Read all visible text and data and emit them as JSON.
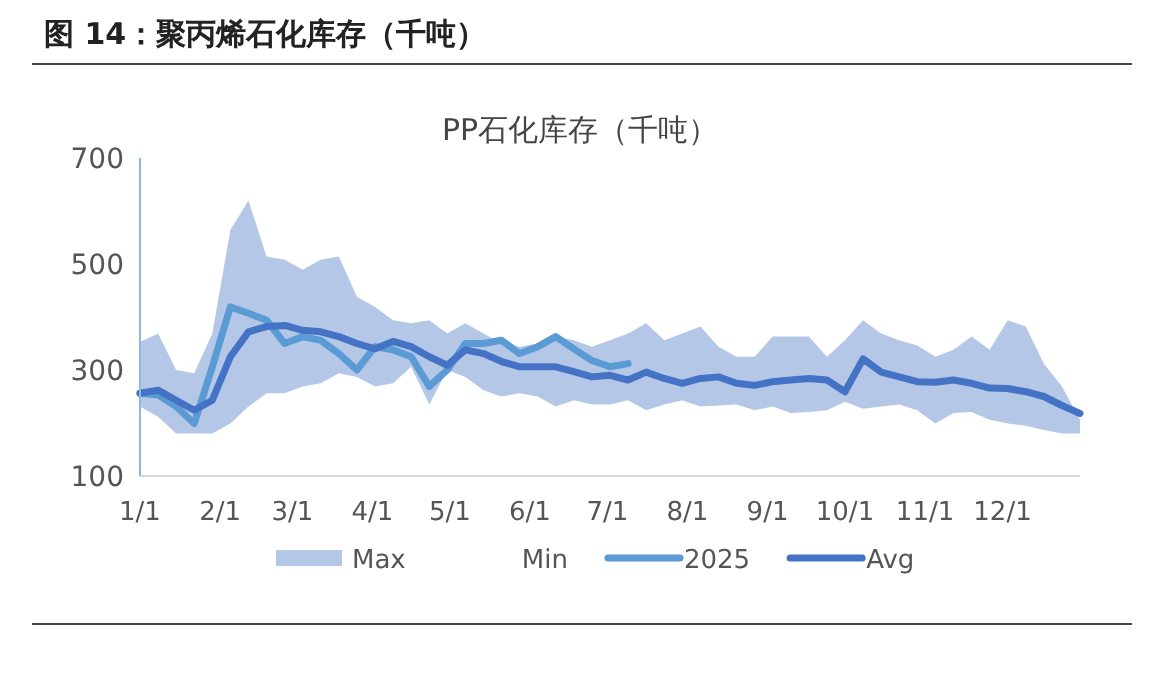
{
  "chart_data": {
    "type": "line",
    "title": "图 14：聚丙烯石化库存（千吨）",
    "subtitle": "PP石化库存（千吨）",
    "x": [
      "--01-01",
      "--01-08",
      "--01-15",
      "--01-22",
      "--01-29",
      "--02-05",
      "--02-12",
      "--02-19",
      "--02-26",
      "--03-05",
      "--03-12",
      "--03-19",
      "--03-26",
      "--04-02",
      "--04-09",
      "--04-16",
      "--04-23",
      "--04-30",
      "--05-07",
      "--05-14",
      "--05-21",
      "--05-28",
      "--06-04",
      "--06-11",
      "--06-18",
      "--06-25",
      "--07-02",
      "--07-09",
      "--07-16",
      "--07-23",
      "--07-30",
      "--08-06",
      "--08-13",
      "--08-20",
      "--08-27",
      "--09-03",
      "--09-10",
      "--09-17",
      "--09-24",
      "--10-01",
      "--10-08",
      "--10-15",
      "--10-22",
      "--10-29",
      "--11-05",
      "--11-12",
      "--11-19",
      "--11-26",
      "--12-03",
      "--12-10",
      "--12-17",
      "--12-24",
      "--12-31"
    ],
    "series": [
      {
        "name": "Max",
        "type": "area",
        "color": "#b4c7e7",
        "values": [
          353,
          369,
          300,
          294,
          369,
          564,
          620,
          514,
          508,
          489,
          508,
          514,
          438,
          419,
          394,
          388,
          394,
          369,
          388,
          369,
          350,
          344,
          350,
          363,
          356,
          344,
          356,
          369,
          388,
          356,
          369,
          382,
          344,
          325,
          325,
          363,
          363,
          363,
          325,
          356,
          394,
          369,
          356,
          346,
          325,
          338,
          363,
          338,
          394,
          382,
          312,
          269,
          206
        ]
      },
      {
        "name": "Min",
        "type": "area",
        "color": "#ffffff",
        "values": [
          231,
          212,
          180,
          180,
          180,
          199,
          231,
          256,
          256,
          269,
          275,
          294,
          287,
          269,
          275,
          306,
          235,
          300,
          287,
          262,
          250,
          256,
          250,
          231,
          243,
          235,
          235,
          243,
          224,
          235,
          243,
          231,
          233,
          235,
          224,
          231,
          219,
          221,
          224,
          240,
          227,
          231,
          235,
          224,
          199,
          219,
          221,
          206,
          199,
          195,
          187,
          180,
          180
        ]
      },
      {
        "name": "2025",
        "color": "#5b9bd5",
        "x": [
          "--01-01",
          "--01-08",
          "--01-15",
          "--01-22",
          "--01-29",
          "--02-05",
          "--02-12",
          "--02-19",
          "--02-26",
          "--03-05",
          "--03-12",
          "--03-19",
          "--03-26",
          "--04-02",
          "--04-09",
          "--04-16",
          "--04-23",
          "--04-30",
          "--05-07",
          "--05-14",
          "--05-21",
          "--05-28",
          "--06-04",
          "--06-11",
          "--06-18",
          "--06-25",
          "--07-02",
          "--07-09"
        ],
        "values": [
          256,
          253,
          231,
          199,
          306,
          419,
          407,
          394,
          350,
          363,
          356,
          331,
          300,
          344,
          338,
          325,
          269,
          300,
          350,
          350,
          356,
          331,
          344,
          363,
          340,
          318,
          306,
          312
        ]
      },
      {
        "name": "Avg",
        "color": "#4472c4",
        "values": [
          256,
          262,
          243,
          224,
          243,
          325,
          372,
          382,
          384,
          375,
          372,
          363,
          350,
          340,
          354,
          344,
          325,
          309,
          338,
          331,
          316,
          306,
          306,
          306,
          297,
          287,
          290,
          281,
          296,
          284,
          275,
          284,
          287,
          275,
          271,
          278,
          281,
          284,
          281,
          259,
          321,
          296,
          287,
          278,
          277,
          281,
          275,
          266,
          265,
          259,
          250,
          233,
          218
        ]
      }
    ],
    "xlim": [
      "--01-01",
      "--12-31"
    ],
    "xticks": [
      {
        "value": "--01-01",
        "label": "1/1"
      },
      {
        "value": "--02-01",
        "label": "2/1"
      },
      {
        "value": "--03-01",
        "label": "3/1"
      },
      {
        "value": "--04-01",
        "label": "4/1"
      },
      {
        "value": "--05-01",
        "label": "5/1"
      },
      {
        "value": "--06-01",
        "label": "6/1"
      },
      {
        "value": "--07-01",
        "label": "7/1"
      },
      {
        "value": "--08-01",
        "label": "8/1"
      },
      {
        "value": "--09-01",
        "label": "9/1"
      },
      {
        "value": "--10-01",
        "label": "10/1"
      },
      {
        "value": "--11-01",
        "label": "11/1"
      },
      {
        "value": "--12-01",
        "label": "12/1"
      }
    ],
    "ylim": [
      100,
      700
    ],
    "yticks": [
      100,
      300,
      500,
      700
    ],
    "legend": "bottom"
  }
}
